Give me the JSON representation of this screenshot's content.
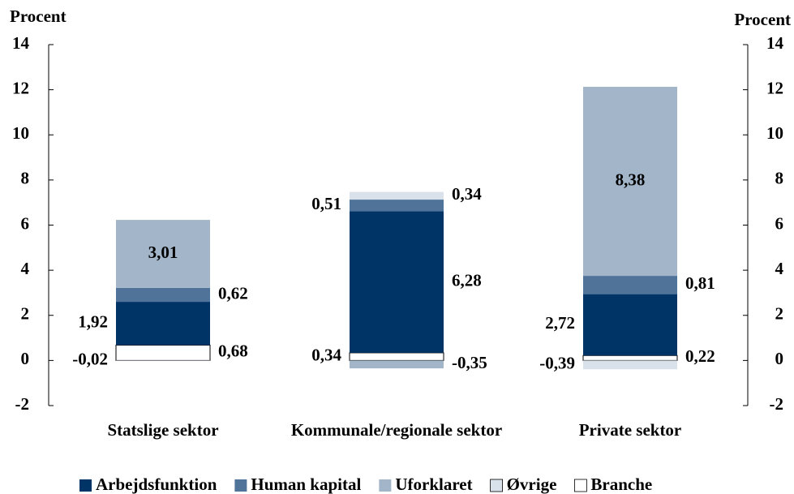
{
  "chart_data": {
    "type": "stacked_bar",
    "y_label": "Procent",
    "y2_label": "Procent",
    "categories": [
      "Statslige sektor",
      "Kommunale/regionale sektor",
      "Private sektor"
    ],
    "series": [
      {
        "name": "Arbejdsfunktion",
        "color": "#003366",
        "values": [
          1.92,
          6.28,
          2.72
        ],
        "value_labels": [
          "1,92",
          "6,28",
          "2,72"
        ]
      },
      {
        "name": "Human kapital",
        "color": "#4f7399",
        "values": [
          0.62,
          0.51,
          0.81
        ],
        "value_labels": [
          "0,62",
          "0,51",
          "0,81"
        ]
      },
      {
        "name": "Uforklaret",
        "color": "#a3b5c9",
        "values": [
          3.01,
          -0.35,
          8.38
        ],
        "value_labels": [
          "3,01",
          "-0,35",
          "8,38"
        ]
      },
      {
        "name": "Øvrige",
        "color": "#d9e1ea",
        "values": [
          -0.02,
          0.34,
          -0.39
        ],
        "value_labels": [
          "-0,02",
          "0,34",
          "-0,39"
        ]
      },
      {
        "name": "Branche",
        "color": "#ffffff",
        "values": [
          0.68,
          0.34,
          0.22
        ],
        "value_labels": [
          "0,68",
          "0,34",
          "0,22"
        ]
      }
    ],
    "ylim": [
      -2,
      14
    ],
    "yticks": [
      -2,
      0,
      2,
      4,
      6,
      8,
      10,
      12,
      14
    ],
    "y2lim": [
      -2,
      14
    ],
    "y2ticks": [
      -2,
      0,
      2,
      4,
      6,
      8,
      10,
      12,
      14
    ],
    "grid": false
  }
}
